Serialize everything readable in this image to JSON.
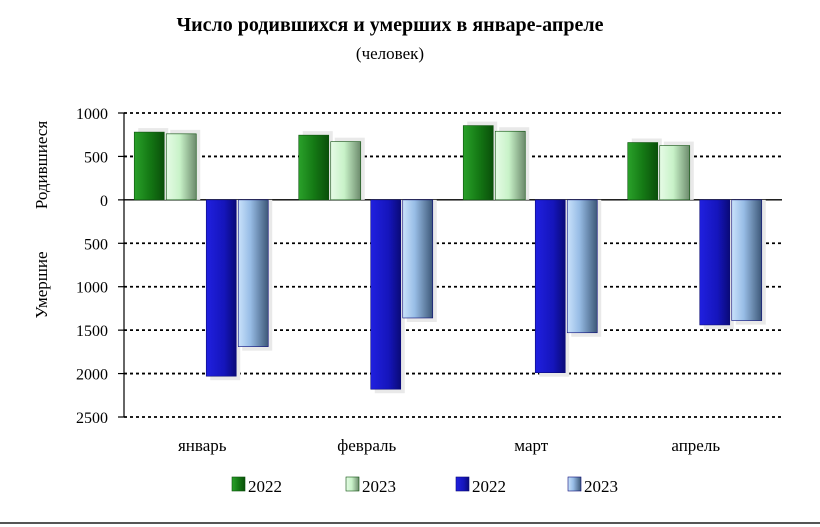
{
  "chart_data": {
    "type": "bar",
    "title": "Число родившихся и умерших в январе-апреле",
    "subtitle": "(человек)",
    "categories": [
      "январь",
      "февраль",
      "март",
      "апрель"
    ],
    "ylabel_top": "Родившиеся",
    "ylabel_bottom": "Умершие",
    "ylim": [
      -2500,
      1000
    ],
    "yticks": [
      1000,
      500,
      0,
      -500,
      -1000,
      -1500,
      -2000,
      -2500
    ],
    "ytick_labels": [
      "1000",
      "500",
      "0",
      "500",
      "1000",
      "1500",
      "2000",
      "2500"
    ],
    "grid": true,
    "legend_position": "bottom",
    "series": [
      {
        "name": "2022",
        "group": "births",
        "values": [
          780,
          745,
          855,
          660
        ],
        "color": "#1e8a1e"
      },
      {
        "name": "2023",
        "group": "births",
        "values": [
          760,
          670,
          790,
          625
        ],
        "color": "#c2f0c2"
      },
      {
        "name": "2022",
        "group": "deaths",
        "values": [
          -2030,
          -2180,
          -1990,
          -1440
        ],
        "color": "#1a1acc"
      },
      {
        "name": "2023",
        "group": "deaths",
        "values": [
          -1690,
          -1360,
          -1530,
          -1390
        ],
        "color": "#a8cdf5"
      }
    ]
  }
}
